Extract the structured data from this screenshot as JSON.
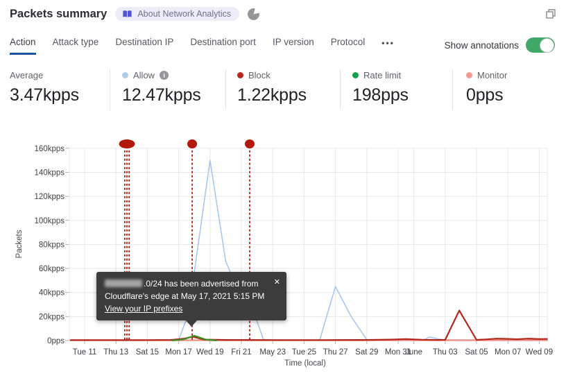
{
  "header": {
    "title": "Packets summary",
    "badge_label": "About Network Analytics"
  },
  "tabs": {
    "items": [
      {
        "label": "Action",
        "active": true
      },
      {
        "label": "Attack type",
        "active": false
      },
      {
        "label": "Destination IP",
        "active": false
      },
      {
        "label": "Destination port",
        "active": false
      },
      {
        "label": "IP version",
        "active": false
      },
      {
        "label": "Protocol",
        "active": false
      }
    ],
    "more_label": "•••",
    "show_annotations_label": "Show annotations",
    "toggle_on": true
  },
  "stats": {
    "items": [
      {
        "label": "Average",
        "value": "3.47kpps",
        "dot_color": ""
      },
      {
        "label": "Allow",
        "value": "12.47kpps",
        "dot_color": "#b0cceb",
        "has_info": true
      },
      {
        "label": "Block",
        "value": "1.22kpps",
        "dot_color": "#b5271b"
      },
      {
        "label": "Rate limit",
        "value": "198pps",
        "dot_color": "#12a14b"
      },
      {
        "label": "Monitor",
        "value": "0pps",
        "dot_color": "#f59a91"
      }
    ],
    "info_icon_label": "i"
  },
  "tooltip": {
    "line1": ".0/24 has been advertised from",
    "line2": "Cloudflare's edge at May 17, 2021 5:15 PM",
    "link_label": "View your IP prefixes",
    "close_label": "✕"
  },
  "colors": {
    "tab_underline": "#16599d",
    "toggle_on": "#3fa968",
    "annotation_red": "#b2190b",
    "grid": "#e8e8e8"
  },
  "chart_data": {
    "type": "line",
    "unit": "kpps",
    "x_axis": {
      "label": "Time (local)",
      "tick_labels": [
        "Tue 11",
        "Thu 13",
        "Sat 15",
        "Mon 17",
        "Wed 19",
        "Fri 21",
        "May 23",
        "Tue 25",
        "Thu 27",
        "Sat 29",
        "Mon 31",
        "June",
        "Thu 03",
        "Sat 05",
        "Mon 07",
        "Wed 09"
      ],
      "tick_days": [
        0,
        2,
        4,
        6,
        8,
        10,
        12,
        14,
        16,
        18,
        20,
        21,
        23,
        25,
        27,
        29
      ]
    },
    "y_axis": {
      "label": "Packets",
      "tick_labels": [
        "0pps",
        "20kpps",
        "40kpps",
        "60kpps",
        "80kpps",
        "100kpps",
        "120kpps",
        "140kpps",
        "160kpps"
      ],
      "tick_values": [
        0,
        20,
        40,
        60,
        80,
        100,
        120,
        140,
        160
      ],
      "ylim": [
        0,
        160
      ]
    },
    "grid": true,
    "series": [
      {
        "name": "Allow",
        "color": "#a9c7e9",
        "width": 1.6,
        "points": [
          [
            -0.9,
            0.3
          ],
          [
            0,
            0.3
          ],
          [
            1,
            0.3
          ],
          [
            2,
            0.35
          ],
          [
            3,
            0.3
          ],
          [
            4,
            0.3
          ],
          [
            5,
            0.4
          ],
          [
            6,
            0.6
          ],
          [
            6.5,
            18
          ],
          [
            7,
            57
          ],
          [
            8,
            150
          ],
          [
            9,
            66
          ],
          [
            10,
            35
          ],
          [
            11,
            16
          ],
          [
            11.4,
            1
          ],
          [
            12,
            0.5
          ],
          [
            13,
            0.4
          ],
          [
            14,
            0.4
          ],
          [
            15,
            0.6
          ],
          [
            16,
            45
          ],
          [
            17,
            20
          ],
          [
            18,
            0.8
          ],
          [
            19,
            0.5
          ],
          [
            20,
            0.5
          ],
          [
            21,
            0.7
          ],
          [
            21.7,
            1
          ],
          [
            22,
            3
          ],
          [
            22.6,
            1.2
          ],
          [
            23,
            0.7
          ],
          [
            24,
            0.5
          ],
          [
            25,
            0.5
          ],
          [
            26,
            0.5
          ],
          [
            27,
            0.5
          ],
          [
            28,
            0.5
          ],
          [
            29.5,
            0.5
          ]
        ]
      },
      {
        "name": "Monitor",
        "color": "#f2938b",
        "width": 2.4,
        "points": [
          [
            -0.9,
            0.25
          ],
          [
            29.5,
            0.25
          ]
        ]
      },
      {
        "name": "Block",
        "color": "#b3261a",
        "width": 2.2,
        "points": [
          [
            -0.9,
            0.35
          ],
          [
            2,
            0.35
          ],
          [
            4,
            0.4
          ],
          [
            5.5,
            0.5
          ],
          [
            6.3,
            1.5
          ],
          [
            6.9,
            3.2
          ],
          [
            7.6,
            0.8
          ],
          [
            9,
            0.5
          ],
          [
            12,
            0.4
          ],
          [
            15,
            0.4
          ],
          [
            18,
            0.5
          ],
          [
            19.5,
            0.8
          ],
          [
            20.5,
            1.2
          ],
          [
            21.5,
            0.7
          ],
          [
            22.5,
            0.5
          ],
          [
            23,
            0.6
          ],
          [
            23.9,
            25
          ],
          [
            25,
            0.6
          ],
          [
            25.6,
            1
          ],
          [
            26.3,
            1.6
          ],
          [
            27,
            1.4
          ],
          [
            27.6,
            1.1
          ],
          [
            28.3,
            1.6
          ],
          [
            29,
            1.2
          ],
          [
            29.5,
            1.3
          ]
        ]
      },
      {
        "name": "Rate limit",
        "color": "#3e8d26",
        "width": 2.2,
        "points": [
          [
            5.6,
            0.05
          ],
          [
            6.3,
            1
          ],
          [
            7,
            4
          ],
          [
            7.7,
            0.9
          ],
          [
            8.4,
            0.05
          ]
        ]
      }
    ],
    "annotations": {
      "color": "#b2190b",
      "items": [
        {
          "day": 2.7,
          "count": 2,
          "line_days": [
            2.56,
            2.7,
            2.84
          ]
        },
        {
          "day": 6.86,
          "count": 1,
          "line_days": [
            6.86
          ]
        },
        {
          "day": 10.53,
          "count": 1,
          "line_days": [
            10.53
          ]
        }
      ]
    }
  }
}
